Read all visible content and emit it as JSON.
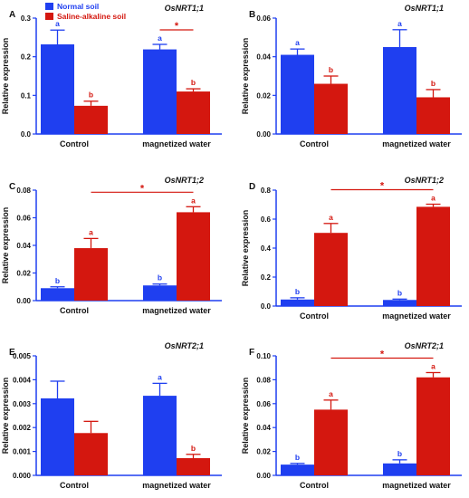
{
  "colors": {
    "normal": "#1f3ff0",
    "saline": "#d4170f",
    "normal_text": "#1f3ff0",
    "saline_text": "#d4170f",
    "axis": "#1f3ff0",
    "star": "#d4170f"
  },
  "legend": {
    "entries": [
      "Normal soil",
      "Saline-alkaline soil"
    ]
  },
  "chart_data": [
    {
      "type": "bar",
      "panel": "A",
      "gene": "OsNRT1;1",
      "ylabel": "Relative expression",
      "categories": [
        "Control",
        "magnetized water"
      ],
      "ylim": [
        0,
        0.3
      ],
      "yticks": [
        "0.0",
        "0.1",
        "0.2",
        "0.3"
      ],
      "series": [
        {
          "name": "Normal soil",
          "values": [
            0.232,
            0.219
          ],
          "errors": [
            0.037,
            0.013
          ],
          "letters": [
            "a",
            "a"
          ]
        },
        {
          "name": "Saline-alkaline soil",
          "values": [
            0.073,
            0.11
          ],
          "errors": [
            0.012,
            0.007
          ],
          "letters": [
            "b",
            "b"
          ]
        }
      ],
      "significance": {
        "from": [
          0,
          1
        ],
        "to": [
          1,
          1
        ],
        "label": "*"
      }
    },
    {
      "type": "bar",
      "panel": "B",
      "gene": "OsNRT1;1",
      "ylabel": "Relative expression",
      "categories": [
        "Control",
        "magnetized water"
      ],
      "ylim": [
        0,
        0.06
      ],
      "yticks": [
        "0.00",
        "0.02",
        "0.04",
        "0.06"
      ],
      "series": [
        {
          "name": "Normal soil",
          "values": [
            0.041,
            0.045
          ],
          "errors": [
            0.003,
            0.009
          ],
          "letters": [
            "a",
            "a"
          ]
        },
        {
          "name": "Saline-alkaline soil",
          "values": [
            0.026,
            0.019
          ],
          "errors": [
            0.004,
            0.004
          ],
          "letters": [
            "b",
            "b"
          ]
        }
      ]
    },
    {
      "type": "bar",
      "panel": "C",
      "gene": "OsNRT1;2",
      "ylabel": "Relative expression",
      "categories": [
        "Control",
        "magnetized water"
      ],
      "ylim": [
        0,
        0.08
      ],
      "yticks": [
        "0.00",
        "0.02",
        "0.04",
        "0.06",
        "0.08"
      ],
      "series": [
        {
          "name": "Normal soil",
          "values": [
            0.009,
            0.011
          ],
          "errors": [
            0.001,
            0.001
          ],
          "letters": [
            "b",
            "b"
          ]
        },
        {
          "name": "Saline-alkaline soil",
          "values": [
            0.038,
            0.064
          ],
          "errors": [
            0.007,
            0.004
          ],
          "letters": [
            "a",
            "a"
          ]
        }
      ],
      "significance": {
        "from": [
          1,
          0
        ],
        "to": [
          1,
          1
        ],
        "label": "*"
      }
    },
    {
      "type": "bar",
      "panel": "D",
      "gene": "OsNRT1;2",
      "ylabel": "Relative expression",
      "categories": [
        "Control",
        "magnetized water"
      ],
      "ylim": [
        0,
        0.8
      ],
      "yticks": [
        "0.0",
        "0.2",
        "0.4",
        "0.6",
        "0.8"
      ],
      "series": [
        {
          "name": "Normal soil",
          "values": [
            0.045,
            0.042
          ],
          "errors": [
            0.012,
            0.006
          ],
          "letters": [
            "b",
            "b"
          ]
        },
        {
          "name": "Saline-alkaline soil",
          "values": [
            0.505,
            0.685
          ],
          "errors": [
            0.065,
            0.018
          ],
          "letters": [
            "a",
            "a"
          ]
        }
      ],
      "significance": {
        "from": [
          1,
          0
        ],
        "to": [
          1,
          1
        ],
        "label": "*"
      }
    },
    {
      "type": "bar",
      "panel": "E",
      "gene": "OsNRT2;1",
      "ylabel": "Relative expression",
      "categories": [
        "Control",
        "magnetized water"
      ],
      "ylim": [
        0,
        0.005
      ],
      "yticks": [
        "0.000",
        "0.001",
        "0.002",
        "0.003",
        "0.004",
        "0.005"
      ],
      "series": [
        {
          "name": "Normal soil",
          "values": [
            0.00322,
            0.00333
          ],
          "errors": [
            0.00072,
            0.00052
          ],
          "letters": [
            "",
            "a"
          ]
        },
        {
          "name": "Saline-alkaline soil",
          "values": [
            0.00177,
            0.00072
          ],
          "errors": [
            0.00049,
            0.00016
          ],
          "letters": [
            "",
            "b"
          ]
        }
      ]
    },
    {
      "type": "bar",
      "panel": "F",
      "gene": "OsNRT2;1",
      "ylabel": "Relative expression",
      "categories": [
        "Control",
        "magnetized water"
      ],
      "ylim": [
        0,
        0.1
      ],
      "yticks": [
        "0.00",
        "0.02",
        "0.04",
        "0.06",
        "0.08",
        "0.10"
      ],
      "series": [
        {
          "name": "Normal soil",
          "values": [
            0.009,
            0.01
          ],
          "errors": [
            0.001,
            0.003
          ],
          "letters": [
            "b",
            "b"
          ]
        },
        {
          "name": "Saline-alkaline soil",
          "values": [
            0.055,
            0.082
          ],
          "errors": [
            0.008,
            0.004
          ],
          "letters": [
            "a",
            "a"
          ]
        }
      ],
      "significance": {
        "from": [
          1,
          0
        ],
        "to": [
          1,
          1
        ],
        "label": "*"
      }
    }
  ]
}
